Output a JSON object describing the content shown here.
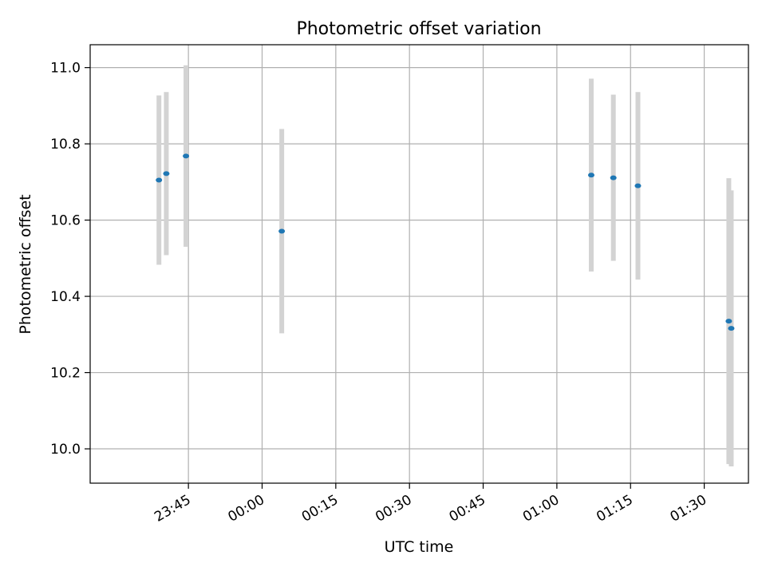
{
  "chart_data": {
    "type": "scatter",
    "title": "Photometric offset variation",
    "xlabel": "UTC time",
    "ylabel": "Photometric offset",
    "x_type": "time",
    "xlim": [
      "23:25",
      "01:39"
    ],
    "ylim": [
      9.91,
      11.06
    ],
    "grid": true,
    "x_ticks": [
      "23:45",
      "00:00",
      "00:15",
      "00:30",
      "00:45",
      "01:00",
      "01:15",
      "01:30"
    ],
    "y_ticks": [
      10.0,
      10.2,
      10.4,
      10.6,
      10.8,
      11.0
    ],
    "point_color": "#1f77b4",
    "errorbar_color": "#d3d3d3",
    "points": [
      {
        "x": "23:39",
        "y": 10.705,
        "yerr": 0.222
      },
      {
        "x": "23:40.5",
        "y": 10.722,
        "yerr": 0.214
      },
      {
        "x": "23:44.5",
        "y": 10.768,
        "yerr": 0.238
      },
      {
        "x": "00:04",
        "y": 10.571,
        "yerr": 0.268
      },
      {
        "x": "01:07",
        "y": 10.718,
        "yerr": 0.253
      },
      {
        "x": "01:11.5",
        "y": 10.711,
        "yerr": 0.218
      },
      {
        "x": "01:16.5",
        "y": 10.69,
        "yerr": 0.246
      },
      {
        "x": "01:35",
        "y": 10.335,
        "yerr": 0.375
      },
      {
        "x": "01:35.5",
        "y": 10.316,
        "yerr": 0.362
      }
    ]
  }
}
